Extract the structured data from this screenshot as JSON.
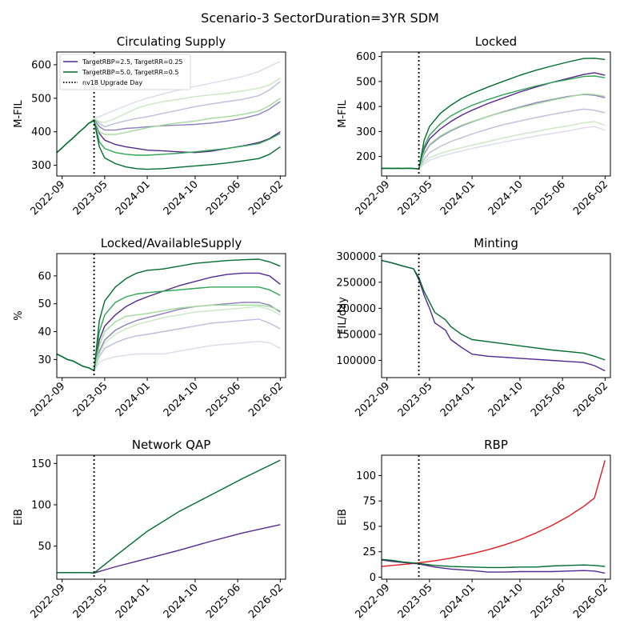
{
  "suptitle": "Scenario-3 SectorDuration=3YR SDM",
  "colors": {
    "purple_dark": "#54278f",
    "purple_mid": "#8a81bd",
    "purple_light": "#bcbddc",
    "purple_faint": "#dadaeb",
    "green_dark": "#006d2c",
    "green_mid": "#31a354",
    "green_light": "#a1d99b",
    "green_faint": "#c7e9c0",
    "vline": "#000000",
    "rbp_baseline": "#e31a1c"
  },
  "x_tick_labels": [
    "2022-09",
    "2023-05",
    "2024-01",
    "2024-10",
    "2025-06",
    "2026-02"
  ],
  "legend": {
    "entries": [
      "TargetRBP=2.5, TargetRR=0.25",
      "TargetRBP=5.0, TargetRR=0.5",
      "nv18 Upgrade Day"
    ]
  },
  "chart_data": [
    {
      "type": "line",
      "title": "Circulating Supply",
      "ylabel": "M-FIL",
      "x_range": [
        "2022-08",
        "2026-03"
      ],
      "ylim": [
        268,
        638
      ],
      "yticks": [
        "300",
        "400",
        "500",
        "600"
      ],
      "vline_x": "2023-03",
      "legend_position": "top-left",
      "x": [
        "2022-08",
        "2022-09",
        "2022-10",
        "2022-11",
        "2022-12",
        "2023-01",
        "2023-02",
        "2023-03",
        "2023-04",
        "2023-05",
        "2023-07",
        "2023-09",
        "2023-11",
        "2024-01",
        "2024-04",
        "2024-07",
        "2024-10",
        "2025-01",
        "2025-04",
        "2025-07",
        "2025-10",
        "2025-12",
        "2026-02"
      ],
      "series": [
        {
          "color": "purple_faint",
          "values": [
            338,
            352,
            367,
            381,
            396,
            410,
            425,
            440,
            445,
            452,
            465,
            478,
            490,
            500,
            513,
            525,
            535,
            545,
            555,
            565,
            580,
            595,
            610
          ]
        },
        {
          "color": "purple_light",
          "values": [
            338,
            352,
            367,
            381,
            396,
            410,
            425,
            440,
            425,
            415,
            425,
            433,
            440,
            445,
            455,
            465,
            475,
            483,
            490,
            497,
            508,
            525,
            550
          ]
        },
        {
          "color": "purple_mid",
          "values": [
            338,
            352,
            367,
            381,
            396,
            410,
            425,
            438,
            415,
            405,
            405,
            410,
            412,
            415,
            418,
            420,
            422,
            426,
            432,
            440,
            452,
            468,
            490
          ]
        },
        {
          "color": "purple_dark",
          "values": [
            338,
            352,
            367,
            381,
            396,
            410,
            425,
            435,
            395,
            375,
            362,
            355,
            350,
            345,
            343,
            340,
            338,
            342,
            350,
            358,
            368,
            380,
            400
          ]
        },
        {
          "color": "green_faint",
          "values": [
            338,
            352,
            367,
            381,
            396,
            410,
            425,
            440,
            430,
            428,
            440,
            455,
            470,
            480,
            490,
            497,
            505,
            510,
            515,
            522,
            530,
            540,
            560
          ]
        },
        {
          "color": "green_light",
          "values": [
            338,
            352,
            367,
            381,
            396,
            410,
            425,
            437,
            400,
            392,
            392,
            398,
            405,
            412,
            420,
            427,
            432,
            440,
            445,
            452,
            462,
            478,
            500
          ]
        },
        {
          "color": "green_mid",
          "values": [
            338,
            352,
            367,
            381,
            396,
            410,
            425,
            435,
            370,
            350,
            338,
            333,
            330,
            330,
            333,
            336,
            340,
            345,
            350,
            357,
            365,
            378,
            395
          ]
        },
        {
          "color": "green_dark",
          "values": [
            338,
            352,
            367,
            381,
            396,
            410,
            425,
            433,
            355,
            322,
            305,
            295,
            290,
            288,
            290,
            294,
            298,
            302,
            307,
            313,
            320,
            333,
            355
          ]
        }
      ]
    },
    {
      "type": "line",
      "title": "Locked",
      "ylabel": "M-FIL",
      "x_range": [
        "2022-08",
        "2026-03"
      ],
      "ylim": [
        122,
        618
      ],
      "yticks": [
        "200",
        "300",
        "400",
        "500",
        "600"
      ],
      "vline_x": "2023-03",
      "x": [
        "2022-08",
        "2022-09",
        "2022-10",
        "2022-11",
        "2022-12",
        "2023-01",
        "2023-02",
        "2023-03",
        "2023-04",
        "2023-05",
        "2023-07",
        "2023-09",
        "2023-11",
        "2024-01",
        "2024-04",
        "2024-07",
        "2024-10",
        "2025-01",
        "2025-04",
        "2025-07",
        "2025-10",
        "2025-12",
        "2026-02"
      ],
      "series": [
        {
          "color": "purple_faint",
          "values": [
            152,
            153,
            152,
            153,
            152,
            153,
            152,
            150,
            170,
            185,
            200,
            212,
            222,
            232,
            245,
            258,
            270,
            282,
            292,
            302,
            315,
            320,
            305
          ]
        },
        {
          "color": "purple_light",
          "values": [
            152,
            153,
            152,
            153,
            152,
            153,
            152,
            150,
            190,
            215,
            240,
            260,
            275,
            290,
            310,
            328,
            342,
            356,
            368,
            380,
            390,
            385,
            375
          ]
        },
        {
          "color": "purple_mid",
          "values": [
            152,
            153,
            152,
            153,
            152,
            153,
            152,
            150,
            210,
            245,
            278,
            302,
            322,
            338,
            360,
            380,
            398,
            415,
            428,
            440,
            448,
            445,
            435
          ]
        },
        {
          "color": "purple_dark",
          "values": [
            152,
            153,
            152,
            153,
            152,
            153,
            152,
            150,
            230,
            270,
            310,
            340,
            365,
            385,
            412,
            435,
            458,
            478,
            496,
            512,
            528,
            535,
            525
          ]
        },
        {
          "color": "green_faint",
          "values": [
            152,
            153,
            152,
            153,
            152,
            153,
            152,
            150,
            178,
            195,
            212,
            225,
            235,
            245,
            260,
            275,
            288,
            300,
            312,
            322,
            335,
            340,
            325
          ]
        },
        {
          "color": "green_light",
          "values": [
            152,
            153,
            152,
            153,
            152,
            153,
            152,
            150,
            215,
            248,
            282,
            305,
            325,
            340,
            360,
            378,
            395,
            410,
            425,
            438,
            450,
            448,
            440
          ]
        },
        {
          "color": "green_mid",
          "values": [
            152,
            153,
            152,
            153,
            152,
            153,
            152,
            150,
            240,
            285,
            330,
            362,
            385,
            405,
            428,
            448,
            465,
            482,
            496,
            508,
            520,
            522,
            515
          ]
        },
        {
          "color": "green_dark",
          "values": [
            152,
            153,
            152,
            153,
            152,
            153,
            152,
            150,
            265,
            320,
            372,
            405,
            432,
            452,
            478,
            502,
            525,
            545,
            562,
            578,
            592,
            593,
            588
          ]
        }
      ]
    },
    {
      "type": "line",
      "title": "Locked/AvailableSupply",
      "ylabel": "%",
      "x_range": [
        "2022-08",
        "2026-03"
      ],
      "ylim": [
        23.5,
        68
      ],
      "yticks": [
        "30",
        "40",
        "50",
        "60"
      ],
      "vline_x": "2023-03",
      "x": [
        "2022-08",
        "2022-09",
        "2022-10",
        "2022-11",
        "2022-12",
        "2023-01",
        "2023-02",
        "2023-03",
        "2023-04",
        "2023-05",
        "2023-07",
        "2023-09",
        "2023-11",
        "2024-01",
        "2024-04",
        "2024-07",
        "2024-10",
        "2025-01",
        "2025-04",
        "2025-07",
        "2025-10",
        "2025-12",
        "2026-02"
      ],
      "series": [
        {
          "color": "purple_faint",
          "values": [
            32,
            31,
            30,
            29.5,
            28.5,
            27.5,
            27,
            26,
            29,
            30,
            31,
            31.5,
            32,
            32,
            32,
            33,
            34,
            35,
            35.5,
            36,
            36.5,
            36,
            34
          ]
        },
        {
          "color": "purple_light",
          "values": [
            32,
            31,
            30,
            29.5,
            28.5,
            27.5,
            27,
            26,
            31,
            34,
            36,
            37.5,
            38.5,
            39,
            40,
            41,
            42,
            43,
            43.5,
            44,
            44.5,
            43,
            41
          ]
        },
        {
          "color": "purple_mid",
          "values": [
            32,
            31,
            30,
            29.5,
            28.5,
            27.5,
            27,
            26,
            33,
            37,
            40.5,
            42.5,
            44,
            45,
            46.5,
            48,
            49,
            49.5,
            50,
            50.5,
            50.5,
            49.5,
            47
          ]
        },
        {
          "color": "purple_dark",
          "values": [
            32,
            31,
            30,
            29.5,
            28.5,
            27.5,
            27,
            26,
            37,
            42,
            46,
            49,
            51,
            52.5,
            54.5,
            56.5,
            58,
            59.5,
            60.5,
            61,
            61,
            60,
            57
          ]
        },
        {
          "color": "green_faint",
          "values": [
            32,
            31,
            30,
            29.5,
            28.5,
            27.5,
            27,
            26,
            32,
            36,
            39,
            41,
            42.5,
            43.5,
            45,
            46,
            47,
            47.5,
            48,
            48.5,
            49,
            48,
            46
          ]
        },
        {
          "color": "green_light",
          "values": [
            32,
            31,
            30,
            29.5,
            28.5,
            27.5,
            27,
            26,
            35,
            40,
            43.5,
            45.5,
            46,
            46.5,
            47.5,
            48.5,
            49,
            49.5,
            49.5,
            49.5,
            49.5,
            49,
            47.5
          ]
        },
        {
          "color": "green_mid",
          "values": [
            32,
            31,
            30,
            29.5,
            28.5,
            27.5,
            27,
            26,
            40,
            46,
            50.5,
            52.5,
            53.5,
            54,
            54.5,
            55,
            55.5,
            56,
            56,
            56,
            56,
            55,
            53
          ]
        },
        {
          "color": "green_dark",
          "values": [
            32,
            31,
            30,
            29.5,
            28.5,
            27.5,
            27,
            26,
            44,
            51,
            56,
            59,
            61,
            62,
            62.5,
            63.5,
            64.5,
            65,
            65.5,
            65.8,
            66,
            65,
            63.5
          ]
        }
      ]
    },
    {
      "type": "line",
      "title": "Minting",
      "ylabel": "FIL/day",
      "x_range": [
        "2022-08",
        "2026-03"
      ],
      "ylim": [
        67000,
        305000
      ],
      "yticks": [
        "100000",
        "150000",
        "200000",
        "250000",
        "300000"
      ],
      "vline_x": "2023-03",
      "x": [
        "2022-08",
        "2022-10",
        "2022-12",
        "2023-02",
        "2023-03",
        "2023-04",
        "2023-05",
        "2023-06",
        "2023-08",
        "2023-09",
        "2023-11",
        "2024-01",
        "2024-04",
        "2024-07",
        "2024-10",
        "2025-01",
        "2025-04",
        "2025-07",
        "2025-10",
        "2025-12",
        "2026-02"
      ],
      "series": [
        {
          "color": "purple_dark",
          "values": [
            292000,
            287000,
            281000,
            276000,
            255000,
            225000,
            200000,
            172000,
            158000,
            140000,
            125000,
            112000,
            108000,
            106000,
            104000,
            102000,
            100000,
            98000,
            96000,
            90000,
            80000
          ]
        },
        {
          "color": "green_dark",
          "values": [
            292000,
            287000,
            281000,
            276000,
            259000,
            232000,
            212000,
            192000,
            178000,
            165000,
            150000,
            140000,
            136000,
            132000,
            128000,
            124000,
            120000,
            117000,
            114000,
            108000,
            101000
          ]
        }
      ]
    },
    {
      "type": "line",
      "title": "Network QAP",
      "ylabel": "EiB",
      "x_range": [
        "2022-08",
        "2026-03"
      ],
      "ylim": [
        10,
        160
      ],
      "yticks": [
        "50",
        "100",
        "150"
      ],
      "vline_x": "2023-03",
      "x": [
        "2022-08",
        "2022-09",
        "2022-10",
        "2022-11",
        "2022-12",
        "2023-01",
        "2023-02",
        "2023-03",
        "2023-07",
        "2024-01",
        "2024-07",
        "2025-01",
        "2025-07",
        "2026-02"
      ],
      "series": [
        {
          "color": "purple_dark",
          "values": [
            18,
            18,
            18,
            18,
            18,
            18,
            18,
            17.5,
            25,
            35,
            45,
            56,
            66,
            76
          ]
        },
        {
          "color": "green_dark",
          "values": [
            18,
            18,
            18,
            18,
            18,
            18,
            18,
            17.5,
            38,
            68,
            92,
            112,
            132,
            154
          ]
        }
      ]
    },
    {
      "type": "line",
      "title": "RBP",
      "ylabel": "EiB",
      "x_range": [
        "2022-08",
        "2026-03"
      ],
      "ylim": [
        -2,
        120
      ],
      "yticks": [
        "0",
        "25",
        "50",
        "75",
        "100"
      ],
      "vline_x": "2023-03",
      "x": [
        "2022-08",
        "2022-10",
        "2022-12",
        "2023-02",
        "2023-03",
        "2023-06",
        "2023-09",
        "2024-01",
        "2024-04",
        "2024-07",
        "2024-10",
        "2025-01",
        "2025-04",
        "2025-07",
        "2025-10",
        "2025-12",
        "2026-02"
      ],
      "series": [
        {
          "color": "rbp_baseline",
          "values": [
            10.5,
            11.5,
            12.5,
            13.5,
            14.1,
            16.2,
            18.7,
            23.1,
            27.0,
            31.6,
            37.0,
            43.4,
            50.8,
            59.5,
            69.7,
            77.8,
            115
          ]
        },
        {
          "color": "purple_dark",
          "values": [
            17,
            15.5,
            14.5,
            13.5,
            13,
            10,
            8,
            6.5,
            5,
            5,
            5.5,
            5.5,
            5.5,
            6,
            6.5,
            6,
            4
          ]
        },
        {
          "color": "green_dark",
          "values": [
            17.5,
            16.5,
            15,
            14,
            13.5,
            11.5,
            10.5,
            10,
            9.5,
            9.5,
            10,
            10,
            11,
            11.5,
            12,
            11.5,
            10.5
          ]
        }
      ]
    }
  ]
}
